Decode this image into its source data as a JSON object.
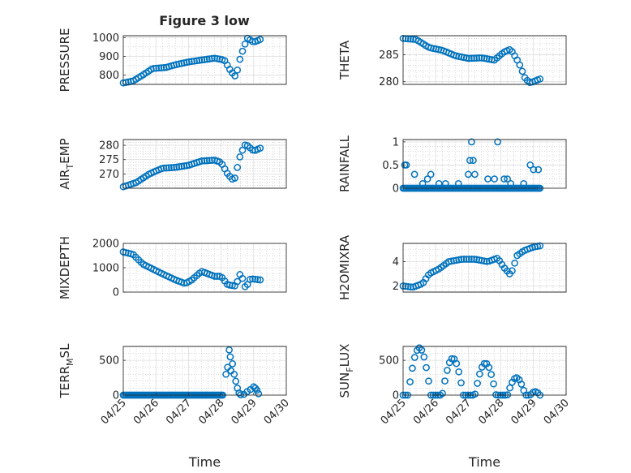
{
  "figure": {
    "title": "Figure 3 low"
  },
  "chart_data": [
    {
      "id": "p1",
      "type": "scatter",
      "title": "Figure 3 low",
      "xlabel": "",
      "ylabel": "PRESSURE",
      "xlim": [
        25,
        30
      ],
      "ylim": [
        750,
        1010
      ],
      "xticks": [],
      "yticks": [
        {
          "v": 800,
          "label": "800"
        },
        {
          "v": 900,
          "label": "900"
        },
        {
          "v": 1000,
          "label": "1000"
        }
      ],
      "yminor": [
        750,
        850,
        950
      ],
      "profile": [
        [
          25.0,
          758
        ],
        [
          25.3,
          768
        ],
        [
          25.6,
          800
        ],
        [
          25.9,
          835
        ],
        [
          26.3,
          840
        ],
        [
          26.6,
          855
        ],
        [
          27.0,
          870
        ],
        [
          27.4,
          880
        ],
        [
          27.8,
          890
        ],
        [
          28.1,
          880
        ],
        [
          28.3,
          820
        ],
        [
          28.45,
          790
        ],
        [
          28.6,
          900
        ],
        [
          28.8,
          998
        ],
        [
          29.0,
          975
        ],
        [
          29.2,
          990
        ]
      ],
      "marker_count": 55
    },
    {
      "id": "p2",
      "type": "scatter",
      "title": "",
      "xlabel": "",
      "ylabel": "THETA",
      "xlim": [
        25,
        30
      ],
      "ylim": [
        279.5,
        288.5
      ],
      "xticks": [],
      "yticks": [
        {
          "v": 280,
          "label": "280"
        },
        {
          "v": 285,
          "label": "285"
        }
      ],
      "yminor": [
        281,
        282,
        283,
        284,
        286,
        287,
        288
      ],
      "profile": [
        [
          25.0,
          288
        ],
        [
          25.4,
          287.8
        ],
        [
          25.8,
          286.3
        ],
        [
          26.2,
          285.8
        ],
        [
          26.6,
          284.8
        ],
        [
          27.0,
          284.3
        ],
        [
          27.4,
          284.4
        ],
        [
          27.8,
          284.0
        ],
        [
          28.1,
          285.5
        ],
        [
          28.3,
          286.0
        ],
        [
          28.55,
          283.5
        ],
        [
          28.75,
          280.5
        ],
        [
          28.9,
          279.8
        ],
        [
          29.2,
          280.5
        ]
      ],
      "marker_count": 55
    },
    {
      "id": "p3",
      "type": "scatter",
      "title": "",
      "xlabel": "",
      "ylabel": "AIR",
      "ylabel_sub": "T",
      "ylabel_rest": "EMP",
      "xlim": [
        25,
        30
      ],
      "ylim": [
        265,
        282
      ],
      "xticks": [],
      "yticks": [
        {
          "v": 270,
          "label": "270"
        },
        {
          "v": 275,
          "label": "275"
        },
        {
          "v": 280,
          "label": "280"
        }
      ],
      "yminor": [
        266,
        267,
        268,
        269,
        271,
        272,
        273,
        274,
        276,
        277,
        278,
        279,
        281
      ],
      "profile": [
        [
          25.0,
          265.5
        ],
        [
          25.4,
          267
        ],
        [
          25.8,
          270
        ],
        [
          26.2,
          272
        ],
        [
          26.6,
          272.3
        ],
        [
          27.0,
          273
        ],
        [
          27.4,
          274.5
        ],
        [
          27.8,
          274.8
        ],
        [
          28.0,
          274
        ],
        [
          28.2,
          270
        ],
        [
          28.4,
          267.5
        ],
        [
          28.6,
          277
        ],
        [
          28.75,
          280.5
        ],
        [
          29.0,
          278
        ],
        [
          29.2,
          279
        ]
      ],
      "marker_count": 55
    },
    {
      "id": "p4",
      "type": "scatter",
      "title": "",
      "xlabel": "",
      "ylabel": "RAINFALL",
      "xlim": [
        25,
        30
      ],
      "ylim": [
        0,
        1.05
      ],
      "xticks": [],
      "yticks": [
        {
          "v": 0,
          "label": "0"
        },
        {
          "v": 0.5,
          "label": "0.5"
        },
        {
          "v": 1,
          "label": "1"
        }
      ],
      "yminor": [
        0.1,
        0.2,
        0.3,
        0.4,
        0.6,
        0.7,
        0.8,
        0.9
      ],
      "baseline_x_from": 25.0,
      "baseline_x_to": 29.2,
      "points": [
        [
          25.05,
          0.5
        ],
        [
          25.1,
          0.5
        ],
        [
          25.35,
          0.3
        ],
        [
          25.6,
          0.1
        ],
        [
          25.75,
          0.2
        ],
        [
          25.85,
          0.3
        ],
        [
          26.1,
          0.1
        ],
        [
          26.3,
          0.1
        ],
        [
          26.7,
          0.1
        ],
        [
          27.0,
          0.3
        ],
        [
          27.05,
          0.6
        ],
        [
          27.1,
          1.0
        ],
        [
          27.15,
          0.6
        ],
        [
          27.2,
          0.3
        ],
        [
          27.6,
          0.2
        ],
        [
          27.8,
          0.2
        ],
        [
          27.9,
          1.0
        ],
        [
          28.1,
          0.2
        ],
        [
          28.2,
          0.2
        ],
        [
          28.3,
          0.1
        ],
        [
          28.7,
          0.1
        ],
        [
          28.9,
          0.5
        ],
        [
          29.0,
          0.4
        ],
        [
          29.15,
          0.4
        ]
      ]
    },
    {
      "id": "p5",
      "type": "scatter",
      "title": "",
      "xlabel": "",
      "ylabel": "MIXDEPTH",
      "xlim": [
        25,
        30
      ],
      "ylim": [
        0,
        2000
      ],
      "xticks": [],
      "yticks": [
        {
          "v": 0,
          "label": "0"
        },
        {
          "v": 1000,
          "label": "1000"
        },
        {
          "v": 2000,
          "label": "2000"
        }
      ],
      "yminor": [
        250,
        500,
        750,
        1250,
        1500,
        1750
      ],
      "profile": [
        [
          25.0,
          1650
        ],
        [
          25.3,
          1550
        ],
        [
          25.6,
          1150
        ],
        [
          25.9,
          950
        ],
        [
          26.2,
          750
        ],
        [
          26.6,
          500
        ],
        [
          26.9,
          350
        ],
        [
          27.1,
          500
        ],
        [
          27.4,
          850
        ],
        [
          27.8,
          650
        ],
        [
          28.0,
          650
        ],
        [
          28.2,
          300
        ],
        [
          28.45,
          250
        ],
        [
          28.6,
          800
        ],
        [
          28.75,
          150
        ],
        [
          28.9,
          550
        ],
        [
          29.2,
          500
        ]
      ],
      "marker_count": 55
    },
    {
      "id": "p6",
      "type": "scatter",
      "title": "",
      "xlabel": "",
      "ylabel": "H2OMIXRA",
      "xlim": [
        25,
        30
      ],
      "ylim": [
        1.5,
        5.5
      ],
      "xticks": [],
      "yticks": [
        {
          "v": 2,
          "label": "2"
        },
        {
          "v": 4,
          "label": "4"
        }
      ],
      "yminor": [
        2.5,
        3,
        3.5,
        4.5,
        5
      ],
      "profile": [
        [
          25.0,
          2.0
        ],
        [
          25.3,
          1.9
        ],
        [
          25.6,
          2.2
        ],
        [
          25.8,
          3.0
        ],
        [
          26.1,
          3.4
        ],
        [
          26.4,
          4.0
        ],
        [
          26.8,
          4.2
        ],
        [
          27.2,
          4.2
        ],
        [
          27.6,
          4.0
        ],
        [
          27.9,
          4.3
        ],
        [
          28.1,
          3.5
        ],
        [
          28.3,
          2.9
        ],
        [
          28.5,
          4.5
        ],
        [
          28.7,
          4.9
        ],
        [
          29.0,
          5.2
        ],
        [
          29.2,
          5.3
        ]
      ],
      "marker_count": 55
    },
    {
      "id": "p7",
      "type": "scatter",
      "title": "",
      "xlabel": "Time",
      "ylabel": "TERR",
      "ylabel_sub": "M",
      "ylabel_rest": "SL",
      "xlim": [
        25,
        30
      ],
      "ylim": [
        0,
        700
      ],
      "xticks": [
        {
          "v": 25,
          "label": "04/25"
        },
        {
          "v": 26,
          "label": "04/26"
        },
        {
          "v": 27,
          "label": "04/27"
        },
        {
          "v": 28,
          "label": "04/28"
        },
        {
          "v": 29,
          "label": "04/29"
        },
        {
          "v": 30,
          "label": "04/30"
        }
      ],
      "yticks": [
        {
          "v": 0,
          "label": "0"
        },
        {
          "v": 500,
          "label": "500"
        }
      ],
      "yminor": [
        100,
        200,
        300,
        400,
        600
      ],
      "baseline_x_from": 25.0,
      "baseline_x_to": 28.05,
      "points": [
        [
          28.15,
          300
        ],
        [
          28.2,
          400
        ],
        [
          28.25,
          650
        ],
        [
          28.28,
          550
        ],
        [
          28.3,
          350
        ],
        [
          28.35,
          450
        ],
        [
          28.4,
          300
        ],
        [
          28.45,
          200
        ],
        [
          28.5,
          100
        ],
        [
          28.55,
          30
        ],
        [
          28.6,
          5
        ],
        [
          28.7,
          10
        ],
        [
          28.8,
          50
        ],
        [
          28.9,
          80
        ],
        [
          29.0,
          120
        ],
        [
          29.05,
          100
        ],
        [
          29.1,
          70
        ],
        [
          29.15,
          20
        ]
      ]
    },
    {
      "id": "p8",
      "type": "scatter",
      "title": "",
      "xlabel": "Time",
      "ylabel": "SUN",
      "ylabel_sub": "F",
      "ylabel_rest": "LUX",
      "xlim": [
        25,
        30
      ],
      "ylim": [
        0,
        700
      ],
      "xticks": [
        {
          "v": 25,
          "label": "04/25"
        },
        {
          "v": 26,
          "label": "04/26"
        },
        {
          "v": 27,
          "label": "04/27"
        },
        {
          "v": 28,
          "label": "04/28"
        },
        {
          "v": 29,
          "label": "04/29"
        },
        {
          "v": 30,
          "label": "04/30"
        }
      ],
      "yticks": [
        {
          "v": 0,
          "label": "0"
        },
        {
          "v": 500,
          "label": "500"
        }
      ],
      "yminor": [
        100,
        200,
        300,
        400,
        600
      ],
      "days": [
        {
          "start": 25.15,
          "end": 25.85,
          "peak": 680
        },
        {
          "start": 26.2,
          "end": 26.85,
          "peak": 530
        },
        {
          "start": 27.2,
          "end": 27.85,
          "peak": 460
        },
        {
          "start": 28.2,
          "end": 28.75,
          "peak": 250
        },
        {
          "start": 28.9,
          "end": 29.2,
          "peak": 50
        }
      ]
    }
  ]
}
